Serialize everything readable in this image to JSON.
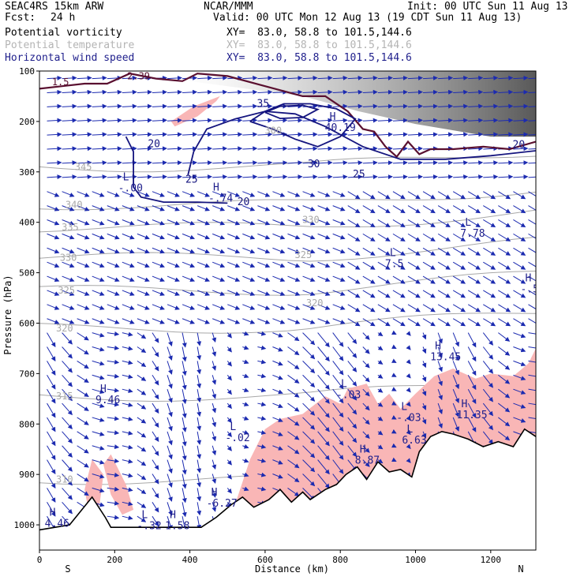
{
  "header": {
    "model": "SEAC4RS 15km ARW",
    "center": "NCAR/MMM",
    "init": "Init: 00 UTC Sun 11 Aug 13",
    "fcst_label": "Fcst:",
    "fcst_value": "24 h",
    "valid": "Valid: 00 UTC Mon 12 Aug 13 (19 CDT Sun 11 Aug 13)",
    "fields": [
      {
        "name": "Potential vorticity",
        "xy": "XY=  83.0, 58.8 to 101.5,144.6"
      },
      {
        "name": "Potential temperature",
        "xy": "XY=  83.0, 58.8 to 101.5,144.6"
      },
      {
        "name": "Horizontal wind speed",
        "xy": "XY=  83.0, 58.8 to 101.5,144.6"
      }
    ]
  },
  "colors": {
    "pv_contour": "#5a1030",
    "pv_fill": "#f9b6b6",
    "theta": "#a8a8a8",
    "wind_speed": "#15157f",
    "wind_vectors": "#1c2bb0",
    "header_navy": "#1f1f8c"
  },
  "chart_data": {
    "type": "cross-section",
    "xlabel": "Distance (km)",
    "ylabel": "Pressure (hPa)",
    "xlim": [
      0,
      1320
    ],
    "ylim": [
      1050,
      100
    ],
    "x_ticks": [
      0,
      200,
      400,
      600,
      800,
      1000,
      1200
    ],
    "x_tick_labels": [
      "0",
      "200",
      "400",
      "600",
      "800",
      "1000",
      "1200"
    ],
    "y_ticks": [
      100,
      200,
      300,
      400,
      500,
      600,
      700,
      800,
      900,
      1000
    ],
    "y_tick_labels": [
      "100",
      "200",
      "300",
      "400",
      "500",
      "600",
      "700",
      "800",
      "900",
      "1000"
    ],
    "endpoint_labels": {
      "left": "S",
      "right": "N"
    },
    "wind_speed_contours": [
      {
        "label": "20",
        "points": [
          [
            230,
            230
          ],
          [
            250,
            260
          ],
          [
            250,
            300
          ],
          [
            250,
            330
          ],
          [
            270,
            350
          ],
          [
            330,
            360
          ],
          [
            420,
            360
          ],
          [
            500,
            362
          ]
        ]
      },
      {
        "label": "25",
        "points": [
          [
            395,
            306
          ],
          [
            410,
            260
          ],
          [
            445,
            215
          ],
          [
            520,
            195
          ],
          [
            600,
            180
          ],
          [
            680,
            185
          ],
          [
            760,
            210
          ],
          [
            860,
            250
          ],
          [
            960,
            275
          ],
          [
            1080,
            275
          ],
          [
            1200,
            268
          ],
          [
            1320,
            258
          ]
        ]
      },
      {
        "label": "30",
        "points": [
          [
            560,
            200
          ],
          [
            600,
            180
          ],
          [
            650,
            165
          ],
          [
            720,
            165
          ],
          [
            790,
            175
          ],
          [
            840,
            195
          ],
          [
            800,
            230
          ],
          [
            740,
            250
          ],
          [
            680,
            235
          ],
          [
            620,
            215
          ],
          [
            560,
            200
          ]
        ]
      },
      {
        "label": "35",
        "points": [
          [
            600,
            182
          ],
          [
            640,
            170
          ],
          [
            700,
            168
          ],
          [
            740,
            176
          ],
          [
            700,
            192
          ],
          [
            640,
            194
          ],
          [
            600,
            182
          ]
        ]
      }
    ],
    "wind_speed_labels": [
      {
        "text": "20",
        "x": 305,
        "y": 245
      },
      {
        "text": "25",
        "x": 405,
        "y": 315
      },
      {
        "text": "30",
        "x": 730,
        "y": 285
      },
      {
        "text": "35",
        "x": 595,
        "y": 165
      },
      {
        "text": "20",
        "x": 1275,
        "y": 246
      },
      {
        "text": "20",
        "x": 543,
        "y": 360
      },
      {
        "text": "25",
        "x": 850,
        "y": 305
      }
    ],
    "theta_labels": [
      {
        "text": "345",
        "x": 115,
        "y": 290
      },
      {
        "text": "340",
        "x": 90,
        "y": 365
      },
      {
        "text": "335",
        "x": 80,
        "y": 410
      },
      {
        "text": "330",
        "x": 75,
        "y": 470
      },
      {
        "text": "325",
        "x": 70,
        "y": 535
      },
      {
        "text": "320",
        "x": 65,
        "y": 610
      },
      {
        "text": "315",
        "x": 65,
        "y": 745
      },
      {
        "text": "310",
        "x": 65,
        "y": 910
      },
      {
        "text": "330",
        "x": 720,
        "y": 395
      },
      {
        "text": "325",
        "x": 700,
        "y": 465
      },
      {
        "text": "320",
        "x": 730,
        "y": 560
      },
      {
        "text": "300",
        "x": 620,
        "y": 218
      }
    ],
    "pv_labels": [
      {
        "text": "1.5",
        "x": 50,
        "y": 122
      },
      {
        "text": "2.39",
        "x": 250,
        "y": 110
      }
    ],
    "extrema": [
      {
        "letter": "L",
        "value": "-.00",
        "x": 230,
        "y": 320
      },
      {
        "letter": "H",
        "value": "-.74",
        "x": 470,
        "y": 340
      },
      {
        "letter": "H",
        "value": "40.19",
        "x": 780,
        "y": 200
      },
      {
        "letter": "L",
        "value": "7.78",
        "x": 1140,
        "y": 410
      },
      {
        "letter": "L",
        "value": "7.5",
        "x": 940,
        "y": 470
      },
      {
        "letter": "H",
        "value": "-.58",
        "x": 1300,
        "y": 520
      },
      {
        "letter": "H",
        "value": "13.45",
        "x": 1060,
        "y": 655
      },
      {
        "letter": "H",
        "value": "9.46",
        "x": 170,
        "y": 740
      },
      {
        "letter": "L",
        "value": "-.03",
        "x": 810,
        "y": 730
      },
      {
        "letter": "L",
        "value": "-.03",
        "x": 970,
        "y": 775
      },
      {
        "letter": "H",
        "value": "11.35",
        "x": 1130,
        "y": 770
      },
      {
        "letter": "L",
        "value": "-.02",
        "x": 515,
        "y": 815
      },
      {
        "letter": "L",
        "value": "6.63",
        "x": 985,
        "y": 820
      },
      {
        "letter": "H",
        "value": "8.87",
        "x": 860,
        "y": 860
      },
      {
        "letter": "H",
        "value": "-6.27",
        "x": 465,
        "y": 945
      },
      {
        "letter": "L",
        "value": "-.32",
        "x": 280,
        "y": 990
      },
      {
        "letter": "H",
        "value": "1.58",
        "x": 355,
        "y": 990
      },
      {
        "letter": "H",
        "value": "4.46",
        "x": 35,
        "y": 985
      }
    ],
    "terrain": [
      [
        0,
        1010
      ],
      [
        80,
        1000
      ],
      [
        140,
        945
      ],
      [
        175,
        985
      ],
      [
        190,
        1005
      ],
      [
        430,
        1005
      ],
      [
        470,
        985
      ],
      [
        510,
        960
      ],
      [
        540,
        945
      ],
      [
        570,
        965
      ],
      [
        610,
        950
      ],
      [
        640,
        930
      ],
      [
        670,
        955
      ],
      [
        700,
        935
      ],
      [
        720,
        950
      ],
      [
        760,
        930
      ],
      [
        790,
        920
      ],
      [
        815,
        900
      ],
      [
        845,
        885
      ],
      [
        870,
        910
      ],
      [
        900,
        875
      ],
      [
        930,
        895
      ],
      [
        960,
        890
      ],
      [
        990,
        905
      ],
      [
        1010,
        855
      ],
      [
        1040,
        825
      ],
      [
        1070,
        815
      ],
      [
        1100,
        820
      ],
      [
        1140,
        830
      ],
      [
        1180,
        845
      ],
      [
        1220,
        835
      ],
      [
        1260,
        845
      ],
      [
        1290,
        810
      ],
      [
        1320,
        825
      ]
    ]
  }
}
